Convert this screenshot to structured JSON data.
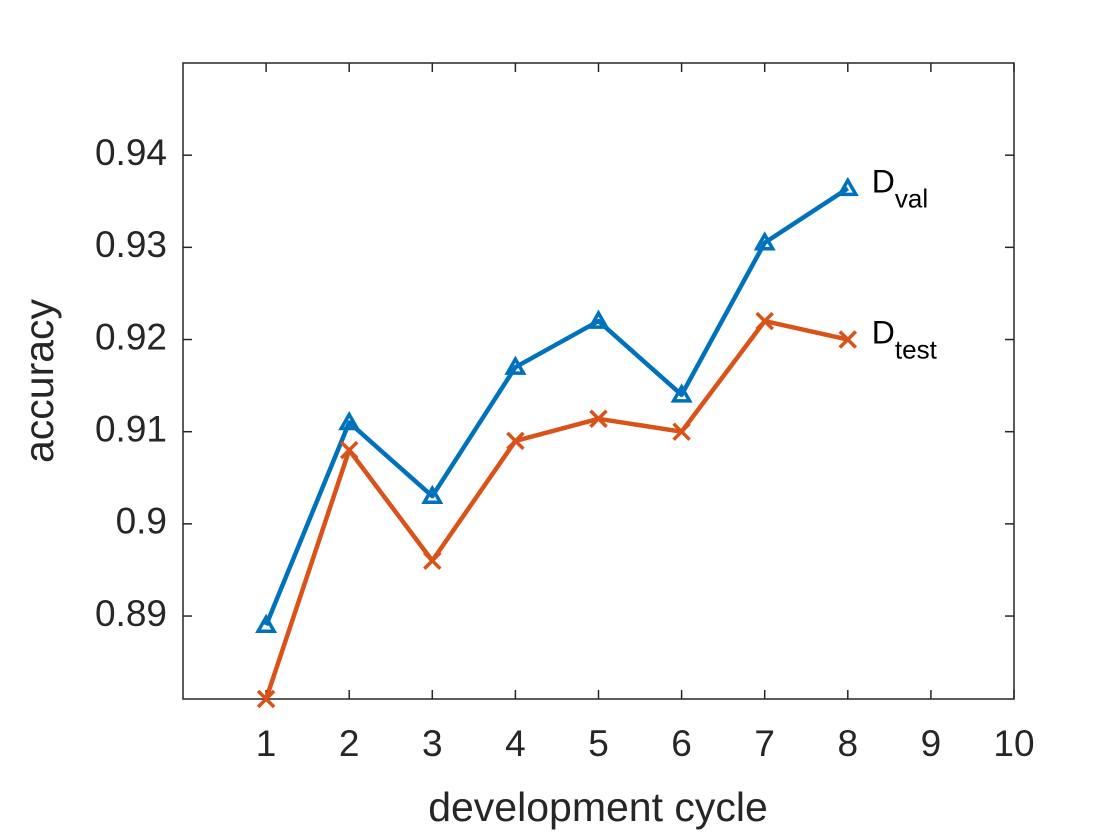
{
  "chart_data": {
    "type": "line",
    "x_label": "development cycle",
    "y_label": "accuracy",
    "x": [
      1,
      2,
      3,
      4,
      5,
      6,
      7,
      8
    ],
    "series": [
      {
        "name": "D",
        "subscript": "val",
        "color": "#0072bd",
        "marker": "triangle",
        "values": [
          0.889,
          0.911,
          0.903,
          0.917,
          0.922,
          0.914,
          0.9305,
          0.9364
        ]
      },
      {
        "name": "D",
        "subscript": "test",
        "color": "#d95319",
        "marker": "x",
        "values": [
          0.881,
          0.908,
          0.896,
          0.909,
          0.9114,
          0.91,
          0.922,
          0.92
        ]
      }
    ],
    "xlim": [
      0,
      10
    ],
    "xticks": [
      1,
      2,
      3,
      4,
      5,
      6,
      7,
      8,
      9,
      10
    ],
    "ylim": [
      0.881,
      0.95
    ],
    "yticks": [
      0.89,
      0.9,
      0.91,
      0.92,
      0.93,
      0.94
    ],
    "grid": false
  }
}
